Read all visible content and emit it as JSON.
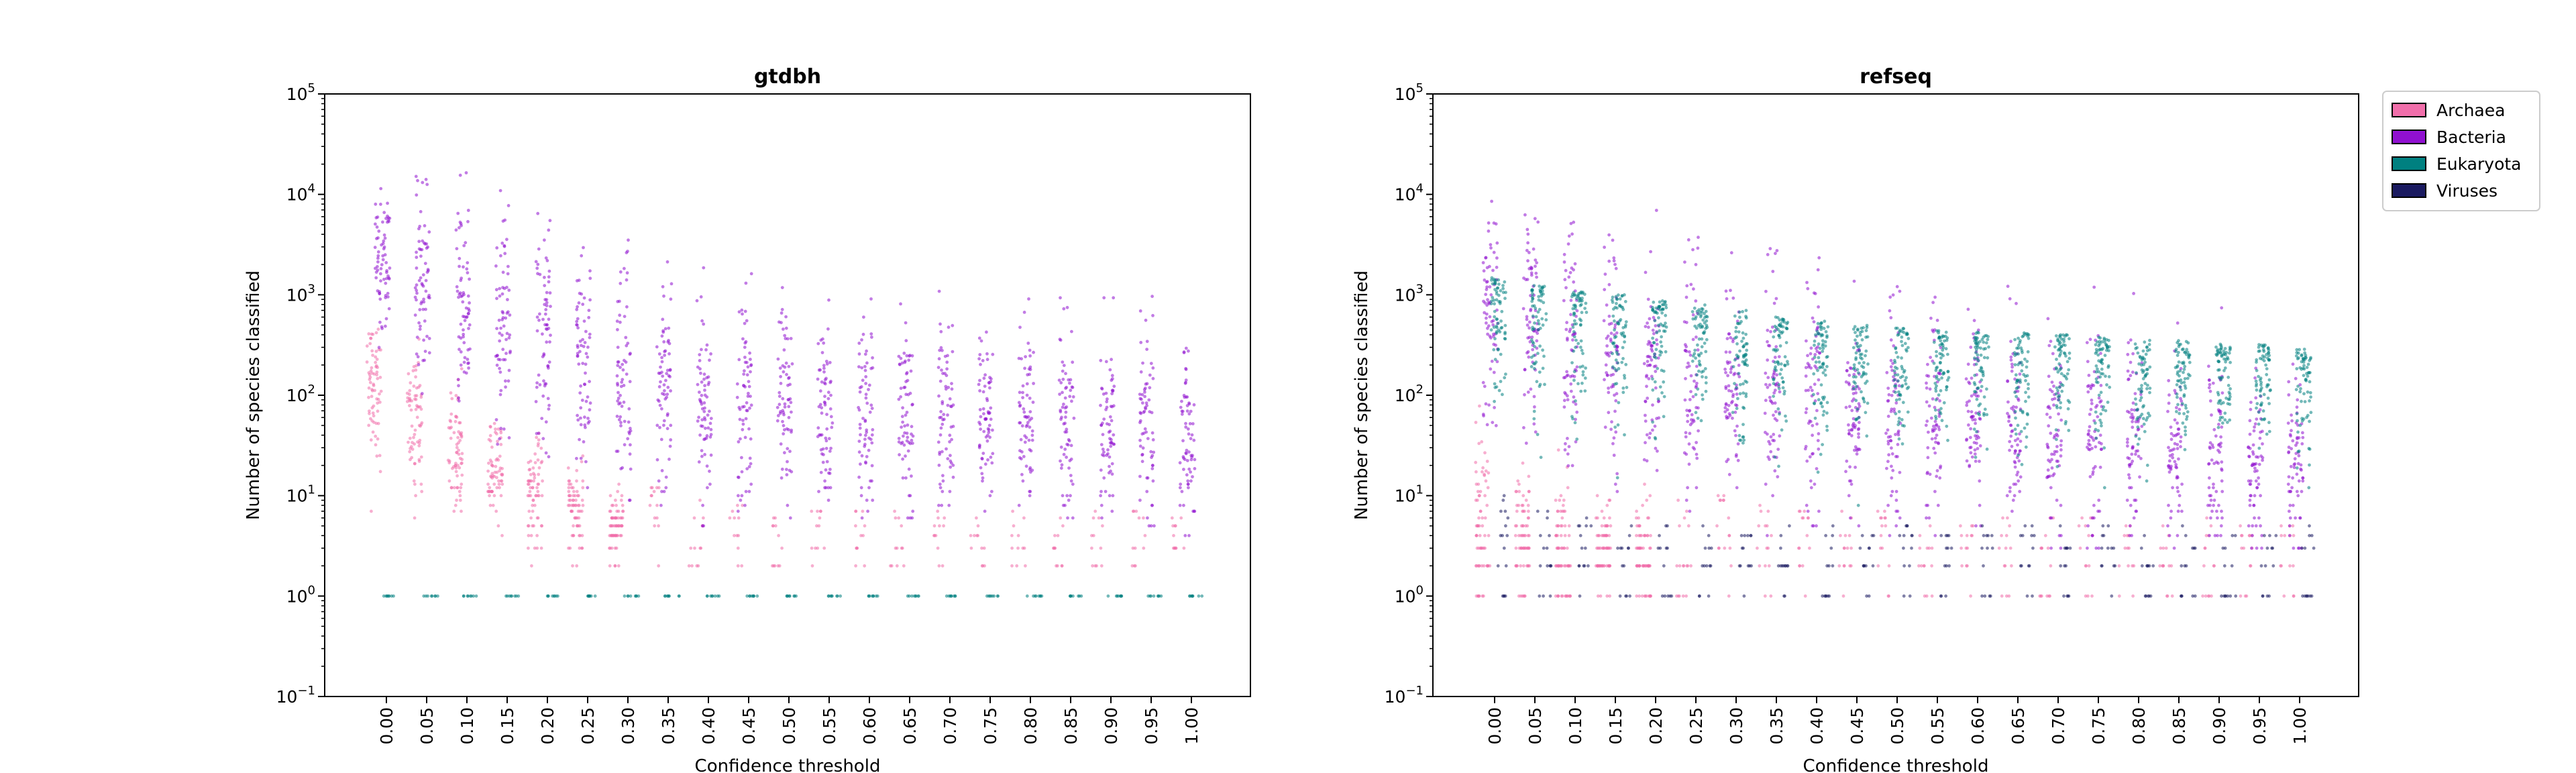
{
  "chart_data": [
    {
      "type": "scatter",
      "title": "gtdbh",
      "xlabel": "Confidence threshold",
      "ylabel": "Number of species classified",
      "yscale": "log",
      "ylim": [
        0.1,
        100000
      ],
      "x_categories": [
        "0.00",
        "0.05",
        "0.10",
        "0.15",
        "0.20",
        "0.25",
        "0.30",
        "0.35",
        "0.40",
        "0.45",
        "0.50",
        "0.55",
        "0.60",
        "0.65",
        "0.70",
        "0.75",
        "0.80",
        "0.85",
        "0.90",
        "0.95",
        "1.00"
      ],
      "y_tick_labels": [
        "10^-1",
        "10^0",
        "10^1",
        "10^2",
        "10^3",
        "10^4",
        "10^5"
      ],
      "series": [
        {
          "name": "Archaea",
          "median": [
            120,
            60,
            30,
            18,
            12,
            8,
            5,
            4,
            4,
            3,
            3,
            3,
            3,
            3,
            3,
            3,
            3,
            3,
            3,
            3,
            3
          ],
          "low": [
            5,
            5,
            4,
            3,
            2,
            2,
            2,
            2,
            2,
            2,
            2,
            2,
            2,
            2,
            2,
            2,
            2,
            2,
            2,
            2,
            2
          ],
          "high": [
            500,
            400,
            200,
            80,
            50,
            30,
            15,
            12,
            10,
            8,
            8,
            8,
            7,
            7,
            7,
            7,
            7,
            7,
            7,
            7,
            7
          ]
        },
        {
          "name": "Bacteria",
          "median": [
            2500,
            1500,
            900,
            500,
            300,
            200,
            150,
            120,
            100,
            95,
            90,
            85,
            80,
            75,
            70,
            65,
            60,
            55,
            50,
            45,
            40
          ],
          "low": [
            200,
            100,
            50,
            30,
            20,
            10,
            8,
            6,
            5,
            5,
            5,
            5,
            5,
            5,
            5,
            5,
            5,
            5,
            5,
            4,
            4
          ],
          "high": [
            30000,
            25000,
            20000,
            15000,
            10000,
            8000,
            5000,
            4000,
            3500,
            3000,
            2500,
            2300,
            2200,
            2000,
            1800,
            1700,
            1500,
            1400,
            1300,
            1200,
            1000
          ]
        },
        {
          "name": "Eukaryota",
          "median": [
            1,
            1,
            1,
            1,
            1,
            1,
            1,
            1,
            1,
            1,
            1,
            1,
            1,
            1,
            1,
            1,
            1,
            1,
            1,
            1,
            1
          ],
          "low": [
            1,
            1,
            1,
            1,
            1,
            1,
            1,
            1,
            1,
            1,
            1,
            1,
            1,
            1,
            1,
            1,
            1,
            1,
            1,
            1,
            1
          ],
          "high": [
            1,
            1,
            1,
            1,
            1,
            1,
            1,
            1,
            1,
            1,
            1,
            1,
            1,
            1,
            1,
            1,
            1,
            1,
            1,
            1,
            1
          ]
        },
        {
          "name": "Viruses",
          "median": [],
          "low": [],
          "high": []
        }
      ]
    },
    {
      "type": "scatter",
      "title": "refseq",
      "xlabel": "Confidence threshold",
      "ylabel": "Number of species classified",
      "yscale": "log",
      "ylim": [
        0.1,
        100000
      ],
      "x_categories": [
        "0.00",
        "0.05",
        "0.10",
        "0.15",
        "0.20",
        "0.25",
        "0.30",
        "0.35",
        "0.40",
        "0.45",
        "0.50",
        "0.55",
        "0.60",
        "0.65",
        "0.70",
        "0.75",
        "0.80",
        "0.85",
        "0.90",
        "0.95",
        "1.00"
      ],
      "y_tick_labels": [
        "10^-1",
        "10^0",
        "10^1",
        "10^2",
        "10^3",
        "10^4",
        "10^5"
      ],
      "series": [
        {
          "name": "Archaea",
          "median": [
            5,
            4,
            3,
            3,
            3,
            2,
            2,
            2,
            2,
            2,
            2,
            2,
            2,
            2,
            2,
            2,
            2,
            2,
            2,
            2,
            2
          ],
          "low": [
            1,
            1,
            1,
            1,
            1,
            1,
            1,
            1,
            1,
            1,
            1,
            1,
            1,
            1,
            1,
            1,
            1,
            1,
            1,
            1,
            1
          ],
          "high": [
            150,
            80,
            50,
            30,
            20,
            12,
            10,
            8,
            8,
            7,
            7,
            6,
            6,
            6,
            6,
            6,
            6,
            6,
            6,
            6,
            6
          ]
        },
        {
          "name": "Bacteria",
          "median": [
            700,
            500,
            350,
            250,
            180,
            150,
            120,
            100,
            90,
            80,
            70,
            60,
            55,
            50,
            45,
            40,
            35,
            30,
            25,
            20,
            20
          ],
          "low": [
            30,
            20,
            15,
            10,
            8,
            6,
            5,
            4,
            4,
            4,
            3,
            3,
            3,
            3,
            3,
            3,
            3,
            3,
            3,
            3,
            3
          ],
          "high": [
            18000,
            15000,
            12000,
            9000,
            7000,
            5000,
            4000,
            3000,
            2500,
            2300,
            2000,
            1800,
            1600,
            1500,
            1400,
            1200,
            1100,
            1000,
            900,
            800,
            700
          ]
        },
        {
          "name": "Eukaryota",
          "median": [
            600,
            550,
            500,
            450,
            400,
            350,
            300,
            250,
            230,
            220,
            210,
            200,
            190,
            185,
            180,
            175,
            170,
            165,
            160,
            155,
            150
          ],
          "low": [
            15,
            12,
            10,
            8,
            7,
            6,
            5,
            5,
            5,
            5,
            5,
            5,
            5,
            5,
            5,
            5,
            5,
            5,
            5,
            5,
            5
          ],
          "high": [
            1500,
            1300,
            1100,
            1000,
            900,
            800,
            700,
            600,
            550,
            500,
            480,
            450,
            430,
            420,
            400,
            380,
            360,
            350,
            330,
            320,
            300
          ]
        },
        {
          "name": "Viruses",
          "median": [
            1,
            1,
            1,
            1,
            1,
            1,
            1,
            1,
            1,
            1,
            1,
            1,
            1,
            1,
            1,
            1,
            1,
            1,
            1,
            1,
            1
          ],
          "low": [
            1,
            1,
            1,
            1,
            1,
            1,
            1,
            1,
            1,
            1,
            1,
            1,
            1,
            1,
            1,
            1,
            1,
            1,
            1,
            1,
            1
          ],
          "high": [
            10,
            8,
            6,
            5,
            5,
            5,
            5,
            5,
            5,
            5,
            5,
            5,
            5,
            5,
            5,
            5,
            5,
            5,
            5,
            5,
            5
          ]
        }
      ]
    }
  ],
  "legend": {
    "placement": "outside-right",
    "items": [
      {
        "label": "Archaea",
        "color": "#f06eaa"
      },
      {
        "label": "Bacteria",
        "color": "#9010d0"
      },
      {
        "label": "Eukaryota",
        "color": "#008080"
      },
      {
        "label": "Viruses",
        "color": "#1a1a60"
      }
    ]
  },
  "colors": {
    "Archaea": "#f06eaa",
    "Bacteria": "#9010d0",
    "Eukaryota": "#008080",
    "Viruses": "#1a1a60"
  }
}
